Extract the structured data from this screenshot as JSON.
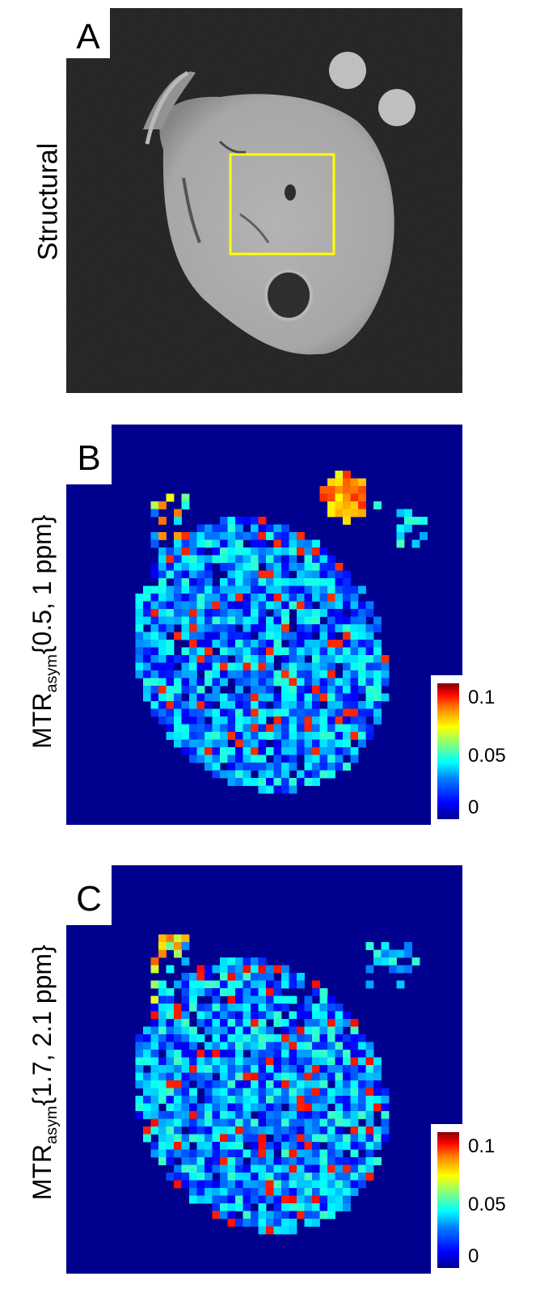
{
  "panels": [
    {
      "letter": "A",
      "label": "Structural"
    },
    {
      "letter": "B",
      "label_main": "MTR",
      "label_sub": "asym",
      "label_rest": "{0.5, 1 ppm}",
      "colorbar": {
        "ticks": [
          "0.1",
          "0.05",
          "0"
        ],
        "colormap": "jet"
      }
    },
    {
      "letter": "C",
      "label_main": "MTR",
      "label_sub": "asym",
      "label_rest": "{1.7, 2.1 ppm}",
      "colorbar": {
        "ticks": [
          "0.1",
          "0.05",
          "0"
        ],
        "colormap": "jet"
      }
    }
  ],
  "colors": {
    "roi_box": "#ffff00",
    "map_background": "#00008f"
  }
}
